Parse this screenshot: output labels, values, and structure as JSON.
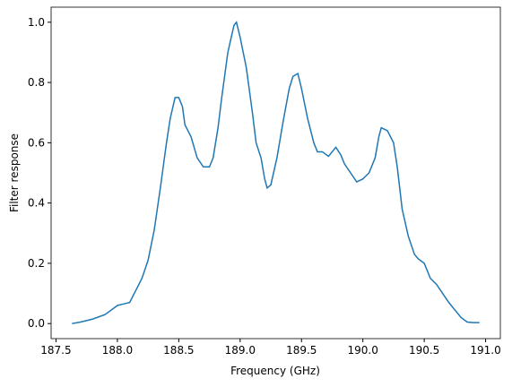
{
  "chart_data": {
    "type": "line",
    "x_label": "Frequency (GHz)",
    "y_label": "Filter response",
    "x": [
      187.63,
      187.7,
      187.8,
      187.9,
      188.0,
      188.05,
      188.1,
      188.15,
      188.2,
      188.25,
      188.3,
      188.35,
      188.4,
      188.43,
      188.47,
      188.5,
      188.53,
      188.55,
      188.6,
      188.65,
      188.7,
      188.75,
      188.78,
      188.82,
      188.85,
      188.9,
      188.95,
      188.97,
      189.0,
      189.05,
      189.1,
      189.13,
      189.17,
      189.2,
      189.22,
      189.25,
      189.3,
      189.35,
      189.4,
      189.43,
      189.47,
      189.5,
      189.55,
      189.6,
      189.63,
      189.67,
      189.72,
      189.75,
      189.78,
      189.82,
      189.85,
      189.9,
      189.95,
      190.0,
      190.05,
      190.1,
      190.13,
      190.15,
      190.2,
      190.25,
      190.28,
      190.32,
      190.37,
      190.42,
      190.45,
      190.5,
      190.55,
      190.6,
      190.65,
      190.7,
      190.75,
      190.8,
      190.85,
      190.9,
      190.95
    ],
    "series": [
      {
        "color": "#1f77b4",
        "values": [
          0.0,
          0.005,
          0.015,
          0.03,
          0.06,
          0.065,
          0.07,
          0.11,
          0.15,
          0.21,
          0.31,
          0.45,
          0.6,
          0.68,
          0.75,
          0.75,
          0.72,
          0.66,
          0.62,
          0.55,
          0.52,
          0.52,
          0.55,
          0.65,
          0.75,
          0.9,
          0.99,
          1.0,
          0.95,
          0.85,
          0.7,
          0.6,
          0.55,
          0.48,
          0.45,
          0.46,
          0.55,
          0.67,
          0.78,
          0.82,
          0.83,
          0.78,
          0.68,
          0.6,
          0.57,
          0.57,
          0.555,
          0.57,
          0.585,
          0.56,
          0.53,
          0.5,
          0.47,
          0.48,
          0.5,
          0.55,
          0.62,
          0.65,
          0.64,
          0.6,
          0.52,
          0.38,
          0.29,
          0.23,
          0.215,
          0.2,
          0.15,
          0.13,
          0.1,
          0.07,
          0.045,
          0.02,
          0.005,
          0.003,
          0.003
        ]
      }
    ],
    "xlim": [
      187.46,
      191.12
    ],
    "ylim": [
      -0.05,
      1.05
    ],
    "xticks": [
      187.5,
      {
        "value": 188,
        "label": "188.0"
      },
      188.5,
      {
        "value": 189,
        "label": "189.0"
      },
      189.5,
      {
        "value": 190,
        "label": "190.0"
      },
      190.5,
      {
        "value": 191,
        "label": "191.0"
      }
    ],
    "yticks": [
      {
        "value": 0,
        "label": "0.0"
      },
      0.2,
      0.4,
      0.6,
      0.8,
      {
        "value": 1,
        "label": "1.0"
      }
    ]
  }
}
